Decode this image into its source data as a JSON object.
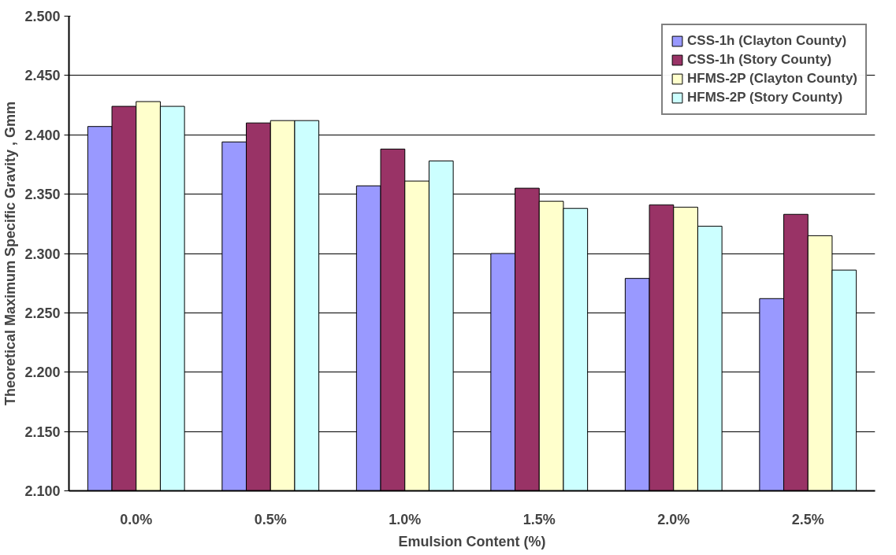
{
  "chart_data": {
    "type": "bar",
    "xlabel": "Emulsion Content (%)",
    "ylabel": "Theoretical Maximum Specific Gravity , Gmm",
    "categories": [
      "0.0%",
      "0.5%",
      "1.0%",
      "1.5%",
      "2.0%",
      "2.5%"
    ],
    "series": [
      {
        "name": "CSS-1h (Clayton County)",
        "color": "#9999ff",
        "values": [
          2.407,
          2.394,
          2.357,
          2.3,
          2.279,
          2.262
        ]
      },
      {
        "name": "CSS-1h (Story County)",
        "color": "#993366",
        "values": [
          2.424,
          2.41,
          2.388,
          2.355,
          2.341,
          2.333
        ]
      },
      {
        "name": "HFMS-2P (Clayton County)",
        "color": "#ffffcc",
        "values": [
          2.428,
          2.412,
          2.361,
          2.344,
          2.339,
          2.315
        ]
      },
      {
        "name": "HFMS-2P (Story County)",
        "color": "#ccffff",
        "values": [
          2.424,
          2.412,
          2.378,
          2.338,
          2.323,
          2.286
        ]
      }
    ],
    "ylim": [
      2.1,
      2.5
    ],
    "yticks": [
      {
        "value": 2.1,
        "label": "2.100"
      },
      {
        "value": 2.15,
        "label": "2.150"
      },
      {
        "value": 2.2,
        "label": "2.200"
      },
      {
        "value": 2.25,
        "label": "2.250"
      },
      {
        "value": 2.3,
        "label": "2.300"
      },
      {
        "value": 2.35,
        "label": "2.350"
      },
      {
        "value": 2.4,
        "label": "2.400"
      },
      {
        "value": 2.45,
        "label": "2.450"
      },
      {
        "value": 2.5,
        "label": "2.500"
      }
    ],
    "grid": "y",
    "legend": "top right"
  }
}
